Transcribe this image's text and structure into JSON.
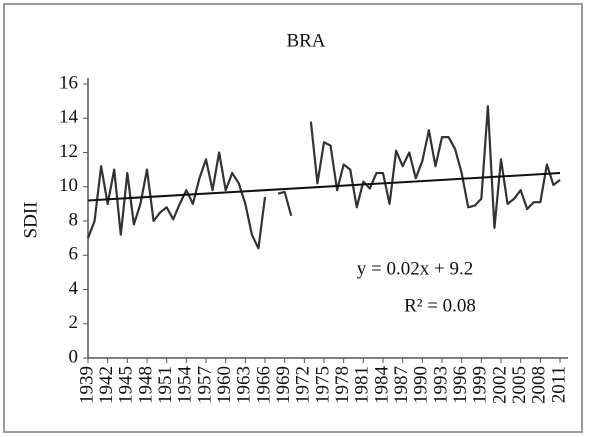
{
  "chart_data": {
    "type": "line",
    "title": "BRA",
    "y_label": "SDII",
    "x": [
      1939,
      1940,
      1941,
      1942,
      1943,
      1944,
      1945,
      1946,
      1947,
      1948,
      1949,
      1950,
      1951,
      1952,
      1953,
      1954,
      1955,
      1956,
      1957,
      1958,
      1959,
      1960,
      1961,
      1962,
      1963,
      1964,
      1965,
      1966,
      1967,
      1968,
      1969,
      1970,
      1971,
      1972,
      1973,
      1974,
      1975,
      1976,
      1977,
      1978,
      1979,
      1980,
      1981,
      1982,
      1983,
      1984,
      1985,
      1986,
      1987,
      1988,
      1989,
      1990,
      1991,
      1992,
      1993,
      1994,
      1995,
      1996,
      1997,
      1998,
      1999,
      2000,
      2001,
      2002,
      2003,
      2004,
      2005,
      2006,
      2007,
      2008,
      2009,
      2010,
      2011
    ],
    "series": [
      {
        "color": "#333333",
        "values": [
          7.0,
          8.0,
          11.2,
          9.0,
          11.0,
          7.2,
          10.8,
          7.8,
          9.0,
          11.0,
          8.0,
          8.5,
          8.8,
          8.1,
          9.0,
          9.8,
          9.0,
          10.5,
          11.6,
          9.8,
          12.0,
          9.8,
          10.8,
          10.2,
          9.0,
          7.2,
          6.4,
          9.4,
          null,
          9.6,
          9.7,
          8.3,
          null,
          null,
          13.8,
          10.2,
          12.6,
          12.4,
          9.8,
          11.3,
          11.0,
          8.8,
          10.3,
          9.9,
          10.8,
          10.8,
          9.0,
          12.1,
          11.2,
          12.0,
          10.5,
          11.5,
          13.3,
          11.2,
          12.9,
          12.9,
          12.2,
          10.8,
          8.8,
          8.9,
          9.3,
          14.7,
          7.6,
          11.6,
          9.0,
          9.3,
          9.8,
          8.7,
          9.1,
          9.1,
          11.3,
          10.1,
          10.4
        ]
      }
    ],
    "trendline": {
      "color": "#111111",
      "x": [
        1939,
        2011
      ],
      "values": [
        9.2,
        10.8
      ]
    },
    "annotations": [
      "y = 0.02x + 9.2",
      "R² = 0.08"
    ],
    "xlim": [
      1939,
      2011
    ],
    "xticks": [
      1939,
      1942,
      1945,
      1948,
      1951,
      1954,
      1957,
      1960,
      1963,
      1966,
      1969,
      1972,
      1975,
      1978,
      1981,
      1984,
      1987,
      1990,
      1993,
      1996,
      1999,
      2002,
      2005,
      2008,
      2011
    ],
    "ylim": [
      0,
      16
    ],
    "yticks": [
      0,
      2,
      4,
      6,
      8,
      10,
      12,
      14,
      16
    ]
  }
}
